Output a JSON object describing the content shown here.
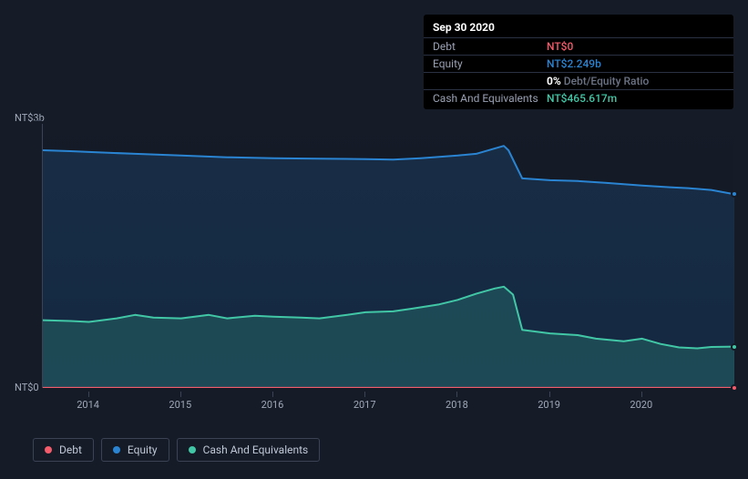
{
  "tooltip": {
    "date": "Sep 30 2020",
    "rows": [
      {
        "label": "Debt",
        "value": "NT$0",
        "color": "#f45b6b"
      },
      {
        "label": "Equity",
        "value": "NT$2.249b",
        "color": "#2a84d2"
      },
      {
        "label": "",
        "value_bold": "0%",
        "value_muted": "Debt/Equity Ratio"
      },
      {
        "label": "Cash And Equivalents",
        "value": "NT$465.617m",
        "color": "#42c7a6"
      }
    ]
  },
  "chart": {
    "type": "area",
    "background_color": "#151b27",
    "grid_color": "#3b4254",
    "text_color": "#a0a8b8",
    "label_fontsize": 11,
    "ylim": [
      0,
      3000000000
    ],
    "ylabel_top": "NT$3b",
    "ylabel_bottom": "NT$0",
    "xlim": [
      2013.5,
      2021.0
    ],
    "xticks": [
      2014,
      2015,
      2016,
      2017,
      2018,
      2019,
      2020
    ],
    "series": [
      {
        "name": "Equity",
        "color": "#2a84d2",
        "fill": "rgba(42,132,210,0.18)",
        "line_width": 2,
        "data": [
          [
            2013.5,
            2700000000
          ],
          [
            2013.8,
            2690000000
          ],
          [
            2014.0,
            2680000000
          ],
          [
            2014.5,
            2660000000
          ],
          [
            2015.0,
            2640000000
          ],
          [
            2015.5,
            2620000000
          ],
          [
            2016.0,
            2610000000
          ],
          [
            2016.5,
            2605000000
          ],
          [
            2017.0,
            2600000000
          ],
          [
            2017.3,
            2595000000
          ],
          [
            2017.6,
            2610000000
          ],
          [
            2018.0,
            2640000000
          ],
          [
            2018.2,
            2660000000
          ],
          [
            2018.4,
            2720000000
          ],
          [
            2018.5,
            2750000000
          ],
          [
            2018.55,
            2700000000
          ],
          [
            2018.7,
            2380000000
          ],
          [
            2019.0,
            2360000000
          ],
          [
            2019.3,
            2350000000
          ],
          [
            2019.6,
            2330000000
          ],
          [
            2020.0,
            2300000000
          ],
          [
            2020.3,
            2280000000
          ],
          [
            2020.5,
            2270000000
          ],
          [
            2020.75,
            2249000000
          ],
          [
            2021.0,
            2200000000
          ]
        ]
      },
      {
        "name": "Cash And Equivalents",
        "color": "#42c7a6",
        "fill": "rgba(66,199,166,0.20)",
        "line_width": 2,
        "data": [
          [
            2013.5,
            770000000
          ],
          [
            2013.8,
            760000000
          ],
          [
            2014.0,
            750000000
          ],
          [
            2014.3,
            790000000
          ],
          [
            2014.5,
            830000000
          ],
          [
            2014.7,
            800000000
          ],
          [
            2015.0,
            790000000
          ],
          [
            2015.3,
            830000000
          ],
          [
            2015.5,
            790000000
          ],
          [
            2015.8,
            820000000
          ],
          [
            2016.0,
            810000000
          ],
          [
            2016.3,
            800000000
          ],
          [
            2016.5,
            790000000
          ],
          [
            2016.8,
            830000000
          ],
          [
            2017.0,
            860000000
          ],
          [
            2017.3,
            870000000
          ],
          [
            2017.5,
            900000000
          ],
          [
            2017.8,
            950000000
          ],
          [
            2018.0,
            1000000000
          ],
          [
            2018.2,
            1070000000
          ],
          [
            2018.4,
            1130000000
          ],
          [
            2018.5,
            1150000000
          ],
          [
            2018.6,
            1060000000
          ],
          [
            2018.7,
            660000000
          ],
          [
            2019.0,
            620000000
          ],
          [
            2019.3,
            600000000
          ],
          [
            2019.5,
            560000000
          ],
          [
            2019.8,
            530000000
          ],
          [
            2020.0,
            560000000
          ],
          [
            2020.2,
            500000000
          ],
          [
            2020.4,
            460000000
          ],
          [
            2020.6,
            450000000
          ],
          [
            2020.75,
            465617000
          ],
          [
            2021.0,
            470000000
          ]
        ]
      },
      {
        "name": "Debt",
        "color": "#f45b6b",
        "fill": "rgba(244,91,107,0.0)",
        "line_width": 2,
        "data": [
          [
            2013.5,
            1000000
          ],
          [
            2021.0,
            1000000
          ]
        ]
      }
    ]
  },
  "legend": {
    "items": [
      {
        "label": "Debt",
        "color": "#f45b6b"
      },
      {
        "label": "Equity",
        "color": "#2a84d2"
      },
      {
        "label": "Cash And Equivalents",
        "color": "#42c7a6"
      }
    ]
  }
}
